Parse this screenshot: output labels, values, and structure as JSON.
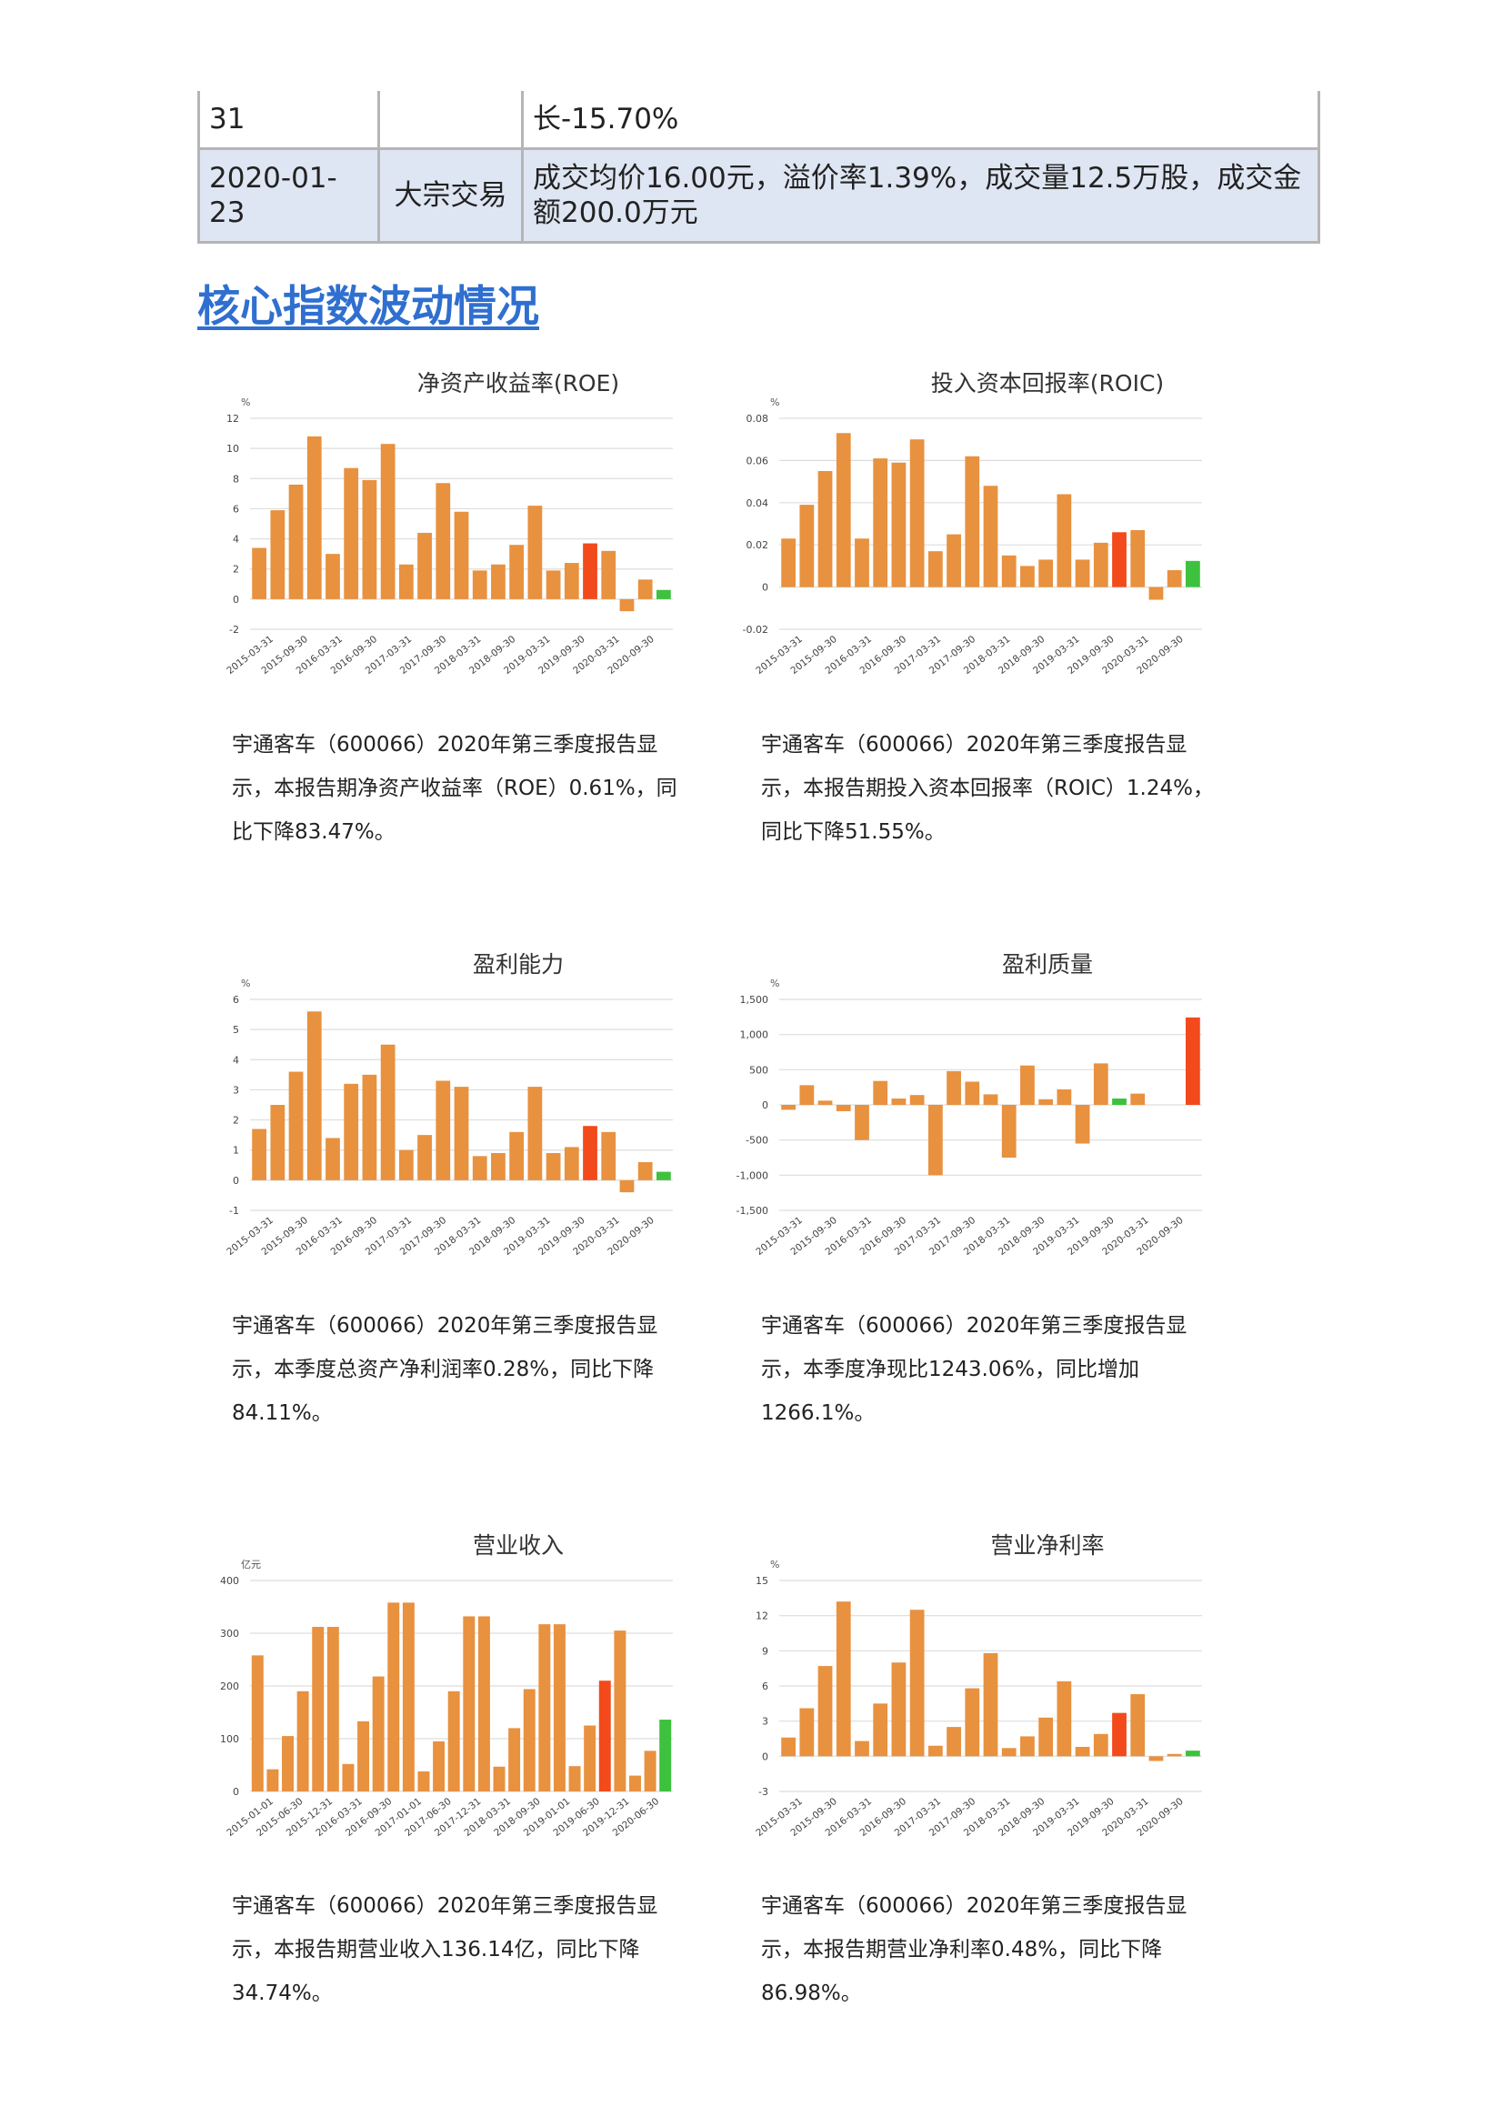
{
  "table": {
    "rows": [
      {
        "date": "31",
        "type": "",
        "detail": "长-15.70%"
      },
      {
        "date": "2020-01-23",
        "type": "大宗交易",
        "detail": "成交均价16.00元，溢价率1.39%，成交量12.5万股，成交金额200.0万元"
      }
    ]
  },
  "section_title": "核心指数波动情况",
  "colors": {
    "bar": "#e8913f",
    "highlight_red": "#f24a1b",
    "highlight_green": "#3ec13e",
    "grid": "#dddddd"
  },
  "chart_data": [
    {
      "type": "bar",
      "title": "净资产收益率(ROE)",
      "unit": "%",
      "ylim": [
        -2,
        12
      ],
      "yticks": [
        "-2",
        "0",
        "2",
        "4",
        "6",
        "8",
        "10",
        "12"
      ],
      "ytick_values": [
        -2,
        0,
        2,
        4,
        6,
        8,
        10,
        12
      ],
      "xtick_labels": [
        "2015-03-31",
        "2015-09-30",
        "2016-03-31",
        "2016-09-30",
        "2017-03-31",
        "2017-09-30",
        "2018-03-31",
        "2018-09-30",
        "2019-03-31",
        "2019-09-30",
        "2020-03-31",
        "2020-09-30"
      ],
      "values": [
        3.4,
        5.9,
        7.6,
        10.8,
        3.0,
        8.7,
        7.9,
        10.3,
        2.3,
        4.4,
        7.7,
        5.8,
        1.9,
        2.3,
        3.6,
        6.2,
        1.9,
        2.4,
        3.7,
        3.2,
        -0.8,
        1.3,
        0.61
      ],
      "highlights": {
        "18": "red",
        "22": "green"
      },
      "caption": [
        "宇通客车（600066）2020年第三季度报告显",
        "示，本报告期净资产收益率（ROE）0.61%，同",
        "比下降83.47%。"
      ]
    },
    {
      "type": "bar",
      "title": "投入资本回报率(ROIC)",
      "unit": "%",
      "ylim": [
        -0.02,
        0.08
      ],
      "yticks": [
        "-0.02",
        "0",
        "0.02",
        "0.04",
        "0.06",
        "0.08"
      ],
      "ytick_values": [
        -0.02,
        0,
        0.02,
        0.04,
        0.06,
        0.08
      ],
      "xtick_labels": [
        "2015-03-31",
        "2015-09-30",
        "2016-03-31",
        "2016-09-30",
        "2017-03-31",
        "2017-09-30",
        "2018-03-31",
        "2018-09-30",
        "2019-03-31",
        "2019-09-30",
        "2020-03-31",
        "2020-09-30"
      ],
      "values": [
        0.023,
        0.039,
        0.055,
        0.073,
        0.023,
        0.061,
        0.059,
        0.07,
        0.017,
        0.025,
        0.062,
        0.048,
        0.015,
        0.01,
        0.013,
        0.044,
        0.013,
        0.021,
        0.026,
        0.027,
        -0.006,
        0.008,
        0.0124
      ],
      "highlights": {
        "18": "red",
        "22": "green"
      },
      "caption": [
        "宇通客车（600066）2020年第三季度报告显",
        "示，本报告期投入资本回报率（ROIC）1.24%，",
        "同比下降51.55%。"
      ]
    },
    {
      "type": "bar",
      "title": "盈利能力",
      "unit": "%",
      "ylim": [
        -1,
        6
      ],
      "yticks": [
        "-1",
        "0",
        "1",
        "2",
        "3",
        "4",
        "5",
        "6"
      ],
      "ytick_values": [
        -1,
        0,
        1,
        2,
        3,
        4,
        5,
        6
      ],
      "xtick_labels": [
        "2015-03-31",
        "2015-09-30",
        "2016-03-31",
        "2016-09-30",
        "2017-03-31",
        "2017-09-30",
        "2018-03-31",
        "2018-09-30",
        "2019-03-31",
        "2019-09-30",
        "2020-03-31",
        "2020-09-30"
      ],
      "values": [
        1.7,
        2.5,
        3.6,
        5.6,
        1.4,
        3.2,
        3.5,
        4.5,
        1.0,
        1.5,
        3.3,
        3.1,
        0.8,
        0.9,
        1.6,
        3.1,
        0.9,
        1.1,
        1.8,
        1.6,
        -0.4,
        0.6,
        0.28
      ],
      "highlights": {
        "18": "red",
        "22": "green"
      },
      "caption": [
        "宇通客车（600066）2020年第三季度报告显",
        "示，本季度总资产净利润率0.28%，同比下降",
        "84.11%。"
      ]
    },
    {
      "type": "bar",
      "title": "盈利质量",
      "unit": "%",
      "ylim": [
        -1500,
        1500
      ],
      "yticks": [
        "-1,500",
        "-1,000",
        "-500",
        "0",
        "500",
        "1,000",
        "1,500"
      ],
      "ytick_values": [
        -1500,
        -1000,
        -500,
        0,
        500,
        1000,
        1500
      ],
      "xtick_labels": [
        "2015-03-31",
        "2015-09-30",
        "2016-03-31",
        "2016-09-30",
        "2017-03-31",
        "2017-09-30",
        "2018-03-31",
        "2018-09-30",
        "2019-03-31",
        "2019-09-30",
        "2020-03-31",
        "2020-09-30"
      ],
      "values": [
        -70,
        280,
        60,
        -90,
        -500,
        340,
        90,
        140,
        -1000,
        480,
        330,
        150,
        -750,
        560,
        80,
        220,
        -550,
        590,
        90,
        160,
        0,
        0,
        1243
      ],
      "highlights": {
        "18": "green",
        "22": "red"
      },
      "caption": [
        "宇通客车（600066）2020年第三季度报告显",
        "示，本季度净现比1243.06%，同比增加",
        "1266.1%。"
      ]
    },
    {
      "type": "bar",
      "title": "营业收入",
      "unit": "亿元",
      "ylim": [
        0,
        400
      ],
      "yticks": [
        "0",
        "100",
        "200",
        "300",
        "400"
      ],
      "ytick_values": [
        0,
        100,
        200,
        300,
        400
      ],
      "xtick_labels": [
        "2015-01-01",
        "2015-06-30",
        "2015-12-31",
        "2016-03-31",
        "2016-09-30",
        "2017-01-01",
        "2017-06-30",
        "2017-12-31",
        "2018-03-31",
        "2018-09-30",
        "2019-01-01",
        "2019-06-30",
        "2019-12-31",
        "2020-06-30"
      ],
      "values": [
        258,
        42,
        105,
        190,
        312,
        312,
        52,
        133,
        218,
        358,
        358,
        38,
        95,
        190,
        332,
        332,
        47,
        120,
        194,
        317,
        317,
        48,
        125,
        210,
        305,
        30,
        77,
        136.14
      ],
      "highlights": {
        "23": "red",
        "27": "green"
      },
      "caption": [
        "宇通客车（600066）2020年第三季度报告显",
        "示，本报告期营业收入136.14亿，同比下降",
        "34.74%。"
      ]
    },
    {
      "type": "bar",
      "title": "营业净利率",
      "unit": "%",
      "ylim": [
        -3,
        15
      ],
      "yticks": [
        "-3",
        "0",
        "3",
        "6",
        "9",
        "12",
        "15"
      ],
      "ytick_values": [
        -3,
        0,
        3,
        6,
        9,
        12,
        15
      ],
      "xtick_labels": [
        "2015-03-31",
        "2015-09-30",
        "2016-03-31",
        "2016-09-30",
        "2017-03-31",
        "2017-09-30",
        "2018-03-31",
        "2018-09-30",
        "2019-03-31",
        "2019-09-30",
        "2020-03-31",
        "2020-09-30"
      ],
      "values": [
        1.6,
        4.1,
        7.7,
        13.2,
        1.3,
        4.5,
        8.0,
        12.5,
        0.9,
        2.5,
        5.8,
        8.8,
        0.7,
        1.7,
        3.3,
        6.4,
        0.8,
        1.9,
        3.7,
        5.3,
        -0.4,
        0.2,
        0.48
      ],
      "highlights": {
        "18": "red",
        "22": "green"
      },
      "caption": [
        "宇通客车（600066）2020年第三季度报告显",
        "示，本报告期营业净利率0.48%，同比下降",
        "86.98%。"
      ]
    }
  ]
}
